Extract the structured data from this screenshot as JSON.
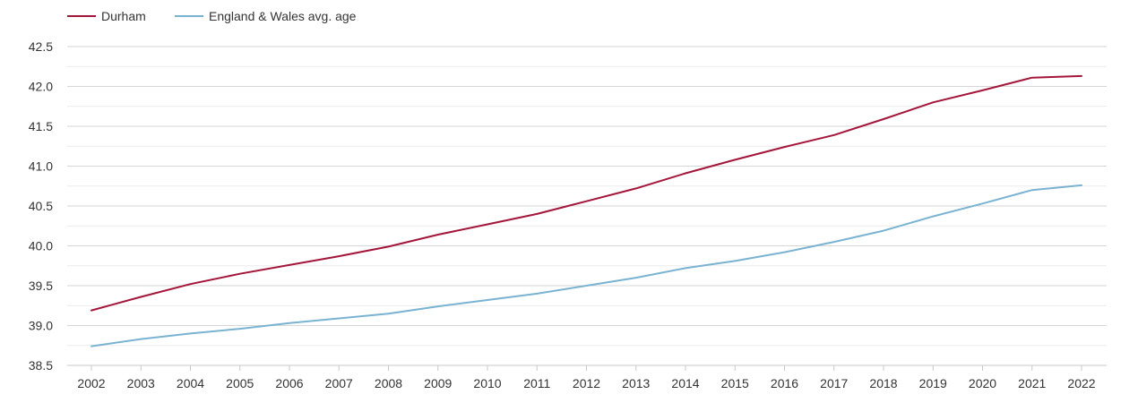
{
  "chart_data": {
    "type": "line",
    "title": "",
    "xlabel": "",
    "ylabel": "",
    "x": [
      "2002",
      "2003",
      "2004",
      "2005",
      "2006",
      "2007",
      "2008",
      "2009",
      "2010",
      "2011",
      "2012",
      "2013",
      "2014",
      "2015",
      "2016",
      "2017",
      "2018",
      "2019",
      "2020",
      "2021",
      "2022"
    ],
    "ylim": [
      38.5,
      42.5
    ],
    "yticks": [
      "38.5",
      "39.0",
      "39.5",
      "40.0",
      "40.5",
      "41.0",
      "41.5",
      "42.0",
      "42.5"
    ],
    "grid": true,
    "legend_position": "top-left",
    "series": [
      {
        "name": "Durham",
        "color": "#a3163a",
        "values": [
          39.19,
          39.36,
          39.52,
          39.65,
          39.76,
          39.87,
          39.99,
          40.14,
          40.27,
          40.4,
          40.56,
          40.72,
          40.91,
          41.08,
          41.24,
          41.39,
          41.59,
          41.8,
          41.95,
          42.11,
          42.13
        ]
      },
      {
        "name": "England & Wales avg. age",
        "color": "#7ab3d1",
        "values": [
          38.74,
          38.83,
          38.9,
          38.96,
          39.03,
          39.09,
          39.15,
          39.24,
          39.32,
          39.4,
          39.5,
          39.6,
          39.72,
          39.81,
          39.92,
          40.05,
          40.19,
          40.37,
          40.53,
          40.7,
          40.76
        ]
      }
    ]
  }
}
